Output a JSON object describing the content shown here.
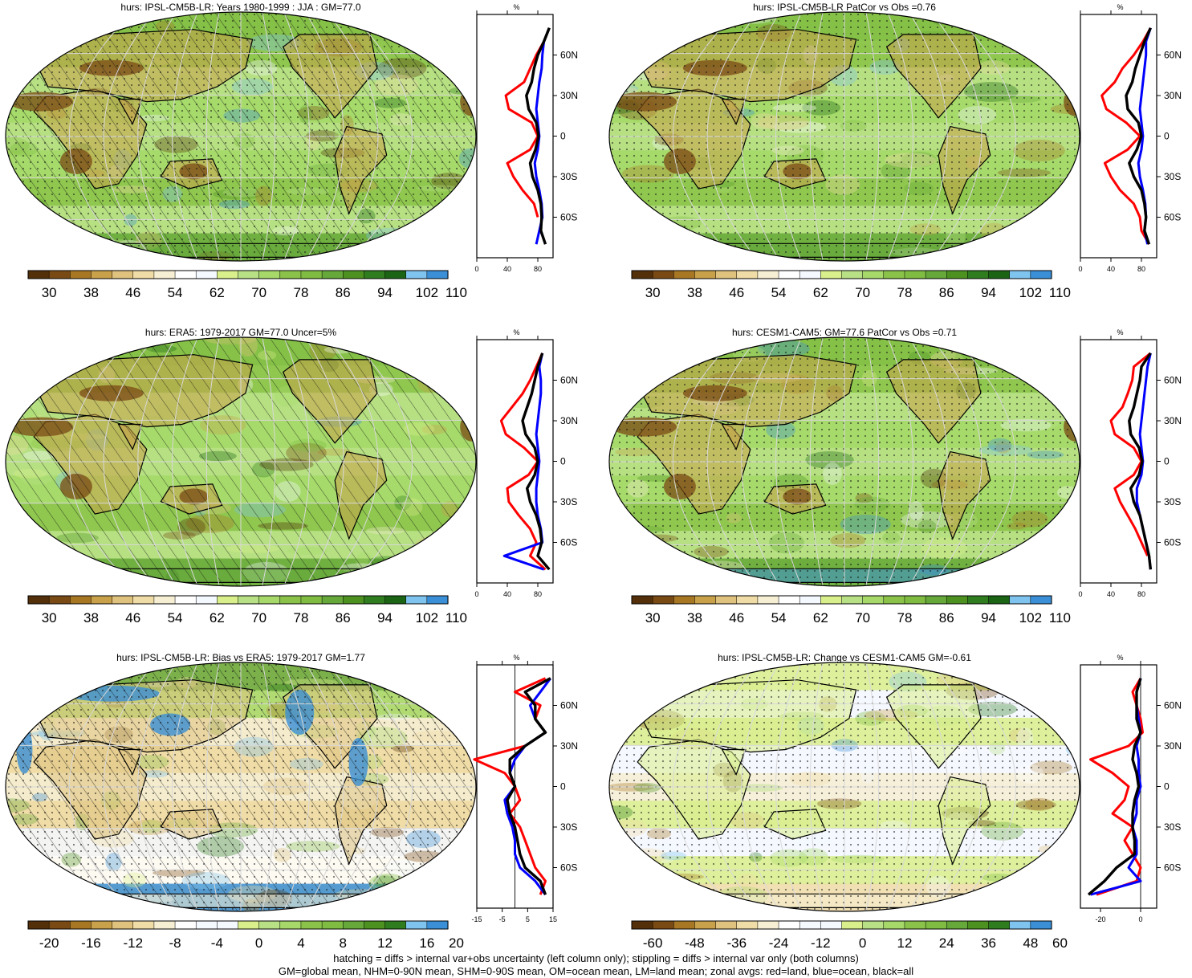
{
  "figure": {
    "footer_lines": [
      "hatching = diffs > internal var+obs uncertainty (left column only); stippling = diffs > internal var only (both columns)",
      "GM=global mean, NHM=0-90N mean, SHM=0-90S mean, OM=ocean mean, LM=land mean; zonal avgs: red=land, blue=ocean, black=all"
    ],
    "colors": {
      "land": "#ff0000",
      "ocean": "#0000ff",
      "all": "#000000"
    }
  },
  "chart_data": [
    {
      "type": "heatmap",
      "title": "hurs: IPSL-CM5B-LR: Years 1980-1999 : JJA : GM=77.0",
      "colorbar_labels": [
        "30",
        "38",
        "46",
        "54",
        "62",
        "70",
        "78",
        "86",
        "94",
        "102",
        "110"
      ],
      "palette": "abs",
      "hatching": true,
      "stippling": true,
      "zonal_profile": {
        "unit": "%",
        "xlim": [
          0,
          100
        ],
        "xticks": [
          "0",
          "40",
          "80"
        ],
        "lat_labels": [
          "60N",
          "30N",
          "0",
          "30S",
          "60S"
        ],
        "lat": [
          80,
          70,
          60,
          50,
          40,
          30,
          20,
          10,
          0,
          -10,
          -20,
          -30,
          -40,
          -50,
          -60,
          -70,
          -80
        ],
        "land": [
          95,
          88,
          78,
          70,
          62,
          38,
          42,
          72,
          80,
          70,
          40,
          48,
          60,
          75,
          80,
          null,
          null
        ],
        "ocean": [
          95,
          88,
          86,
          85,
          82,
          80,
          78,
          80,
          82,
          80,
          76,
          78,
          82,
          85,
          86,
          82,
          78
        ],
        "all": [
          95,
          88,
          80,
          75,
          72,
          65,
          68,
          78,
          81,
          77,
          70,
          73,
          80,
          84,
          85,
          84,
          90
        ]
      }
    },
    {
      "type": "heatmap",
      "title": "hurs: IPSL-CM5B-LR PatCor vs Obs =0.76",
      "colorbar_labels": [
        "30",
        "38",
        "46",
        "54",
        "62",
        "70",
        "78",
        "86",
        "94",
        "102",
        "110"
      ],
      "palette": "abs",
      "hatching": false,
      "stippling": true,
      "zonal_profile": {
        "unit": "%",
        "xlim": [
          0,
          100
        ],
        "xticks": [
          "0",
          "40",
          "80"
        ],
        "lat_labels": [
          "60N",
          "30N",
          "0",
          "30S",
          "60S"
        ],
        "lat": [
          80,
          70,
          60,
          50,
          40,
          30,
          20,
          10,
          0,
          -10,
          -20,
          -30,
          -40,
          -50,
          -60,
          -70,
          -80
        ],
        "land": [
          92,
          82,
          70,
          55,
          45,
          28,
          34,
          60,
          78,
          62,
          32,
          40,
          52,
          70,
          78,
          80,
          90
        ],
        "ocean": [
          92,
          86,
          86,
          84,
          82,
          80,
          78,
          80,
          82,
          80,
          76,
          78,
          82,
          85,
          86,
          84,
          88
        ],
        "all": [
          92,
          84,
          78,
          72,
          68,
          60,
          62,
          76,
          80,
          74,
          64,
          70,
          80,
          84,
          86,
          84,
          90
        ]
      }
    },
    {
      "type": "heatmap",
      "title": "hurs: ERA5: 1979-2017 GM=77.0 Uncer=5%",
      "colorbar_labels": [
        "30",
        "38",
        "46",
        "54",
        "62",
        "70",
        "78",
        "86",
        "94",
        "102",
        "110"
      ],
      "palette": "abs",
      "hatching": true,
      "stippling": false,
      "zonal_profile": {
        "unit": "%",
        "xlim": [
          0,
          100
        ],
        "xticks": [
          "0",
          "40",
          "80"
        ],
        "lat_labels": [
          "60N",
          "30N",
          "0",
          "30S",
          "60S"
        ],
        "lat": [
          80,
          70,
          60,
          50,
          40,
          30,
          20,
          10,
          0,
          -10,
          -20,
          -30,
          -40,
          -50,
          -60,
          -70,
          -80
        ],
        "land": [
          86,
          78,
          70,
          60,
          46,
          32,
          38,
          62,
          80,
          68,
          40,
          42,
          55,
          70,
          78,
          70,
          90
        ],
        "ocean": [
          86,
          82,
          84,
          84,
          82,
          80,
          78,
          80,
          82,
          80,
          78,
          78,
          80,
          84,
          86,
          36,
          88
        ],
        "all": [
          86,
          80,
          76,
          72,
          66,
          60,
          64,
          76,
          80,
          76,
          66,
          70,
          78,
          83,
          85,
          80,
          95
        ]
      }
    },
    {
      "type": "heatmap",
      "title": "hurs: CESM1-CAM5: GM=77.6 PatCor vs Obs =0.71",
      "colorbar_labels": [
        "30",
        "38",
        "46",
        "54",
        "62",
        "70",
        "78",
        "86",
        "94",
        "102",
        "110"
      ],
      "palette": "abs",
      "hatching": false,
      "stippling": true,
      "zonal_profile": {
        "unit": "%",
        "xlim": [
          0,
          100
        ],
        "xticks": [
          "0",
          "40",
          "80"
        ],
        "lat_labels": [
          "60N",
          "30N",
          "0",
          "30S",
          "60S"
        ],
        "lat": [
          80,
          70,
          60,
          50,
          40,
          30,
          20,
          10,
          0,
          -10,
          -20,
          -30,
          -40,
          -50,
          -60,
          -70,
          -80
        ],
        "land": [
          92,
          70,
          68,
          62,
          55,
          40,
          45,
          70,
          80,
          70,
          45,
          52,
          62,
          72,
          80,
          88,
          null
        ],
        "ocean": [
          92,
          88,
          86,
          84,
          82,
          80,
          78,
          80,
          82,
          80,
          74,
          74,
          78,
          82,
          86,
          90,
          92
        ],
        "all": [
          92,
          80,
          78,
          74,
          70,
          64,
          66,
          77,
          81,
          77,
          66,
          70,
          78,
          82,
          86,
          90,
          92
        ]
      }
    },
    {
      "type": "heatmap",
      "title": "hurs: IPSL-CM5B-LR: Bias vs ERA5: 1979-2017 GM=1.77",
      "colorbar_labels": [
        "-20",
        "-16",
        "-12",
        "-8",
        "-4",
        "0",
        "4",
        "8",
        "12",
        "16",
        "20"
      ],
      "palette": "div20",
      "hatching": true,
      "stippling": true,
      "zonal_profile": {
        "unit": "%",
        "xlim": [
          -15,
          15
        ],
        "xticks": [
          "-15",
          "-5",
          "5",
          "15"
        ],
        "lat_labels": [
          "60N",
          "30N",
          "0",
          "30S",
          "60S"
        ],
        "lat": [
          80,
          70,
          60,
          50,
          40,
          30,
          20,
          10,
          0,
          -10,
          -20,
          -30,
          -40,
          -50,
          -60,
          -70,
          -80
        ],
        "land": [
          12,
          0,
          10,
          8,
          12,
          4,
          -16,
          -4,
          0,
          2,
          -2,
          2,
          4,
          6,
          8,
          12,
          10
        ],
        "ocean": [
          14,
          10,
          6,
          8,
          12,
          4,
          0,
          -2,
          0,
          -4,
          -3,
          -1,
          0,
          0,
          2,
          8,
          12
        ],
        "all": [
          14,
          4,
          8,
          8,
          12,
          4,
          -2,
          -2,
          0,
          -3,
          -2,
          0,
          1,
          2,
          4,
          10,
          12
        ]
      }
    },
    {
      "type": "heatmap",
      "title": "hurs: IPSL-CM5B-LR: Change vs CESM1-CAM5 GM=-0.61",
      "colorbar_labels": [
        "-60",
        "-48",
        "-36",
        "-24",
        "-12",
        "0",
        "12",
        "24",
        "36",
        "48",
        "60"
      ],
      "palette": "div60",
      "hatching": false,
      "stippling": true,
      "zonal_profile": {
        "unit": "%",
        "xlim": [
          -30,
          8
        ],
        "xticks": [
          "-20",
          "0"
        ],
        "lat_labels": [
          "60N",
          "30N",
          "0",
          "30S",
          "60S"
        ],
        "lat": [
          80,
          70,
          60,
          50,
          40,
          30,
          20,
          10,
          0,
          -10,
          -20,
          -30,
          -40,
          -50,
          -60,
          -70,
          -80
        ],
        "land": [
          0,
          -4,
          -2,
          0,
          1,
          -6,
          -25,
          -14,
          -6,
          -8,
          -14,
          -4,
          -8,
          -4,
          0,
          -2,
          -22
        ],
        "ocean": [
          0,
          -2,
          -2,
          -1,
          0,
          -2,
          -1,
          -1,
          0,
          -2,
          -2,
          -4,
          -2,
          -2,
          -6,
          0,
          -25
        ],
        "all": [
          0,
          -2,
          -2,
          -2,
          0,
          -3,
          -4,
          -2,
          -1,
          -3,
          -4,
          -4,
          -3,
          -3,
          -12,
          -18,
          -26
        ]
      }
    }
  ]
}
